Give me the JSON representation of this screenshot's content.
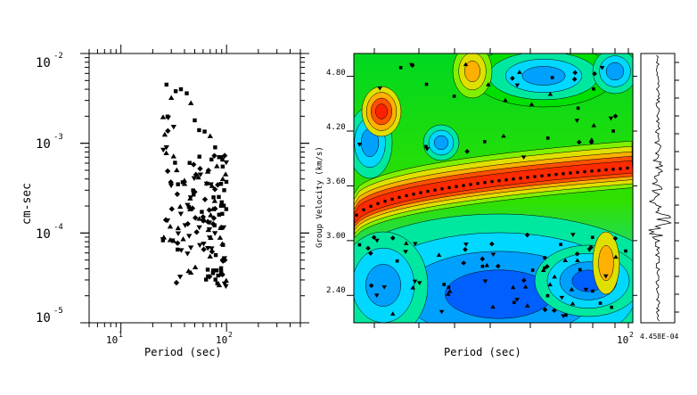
{
  "chart_data": [
    {
      "type": "scatter",
      "xlabel": "Period (sec)",
      "ylabel": "cm-sec",
      "x_scale": "log",
      "y_scale": "log",
      "xlim": [
        5,
        500
      ],
      "ylim": [
        1e-05,
        0.01
      ],
      "x_tick_labels": [
        "10",
        "10",
        "1",
        "2"
      ],
      "y_tick_labels": [
        {
          "base": "10",
          "exp": "-2"
        },
        {
          "base": "10",
          "exp": "-3"
        },
        {
          "base": "10",
          "exp": "-4"
        },
        {
          "base": "10",
          "exp": "-5"
        }
      ],
      "x_tick_values": [
        10,
        100
      ],
      "y_tick_values": [
        0.01,
        0.001,
        0.0001,
        1e-05
      ],
      "markers": [
        "square",
        "triangle",
        "diamond",
        "inverted-triangle"
      ],
      "grid": false
    },
    {
      "type": "heatmap",
      "xlabel": "Period (sec)",
      "ylabel": "Group Velocity (km/s)",
      "x_scale": "log",
      "ylim": [
        2.1,
        5.05
      ],
      "y_tick_labels": [
        "4.80",
        "4.20",
        "3.60",
        "3.00",
        "2.40"
      ],
      "y_tick_values": [
        4.8,
        4.2,
        3.6,
        3.0,
        2.4
      ],
      "x_tick_label": {
        "base": "10",
        "exp": "2"
      },
      "colormap": [
        "#0060ff",
        "#00a0ff",
        "#00d8ff",
        "#00e8a0",
        "#00e000",
        "#80f000",
        "#e0e000",
        "#ffb000",
        "#ff5000",
        "#ff2000"
      ],
      "ridge_color": "#ff2a00",
      "grid": false
    },
    {
      "type": "line",
      "name": "seismogram",
      "amplitude_label": "4.458E-04"
    }
  ]
}
